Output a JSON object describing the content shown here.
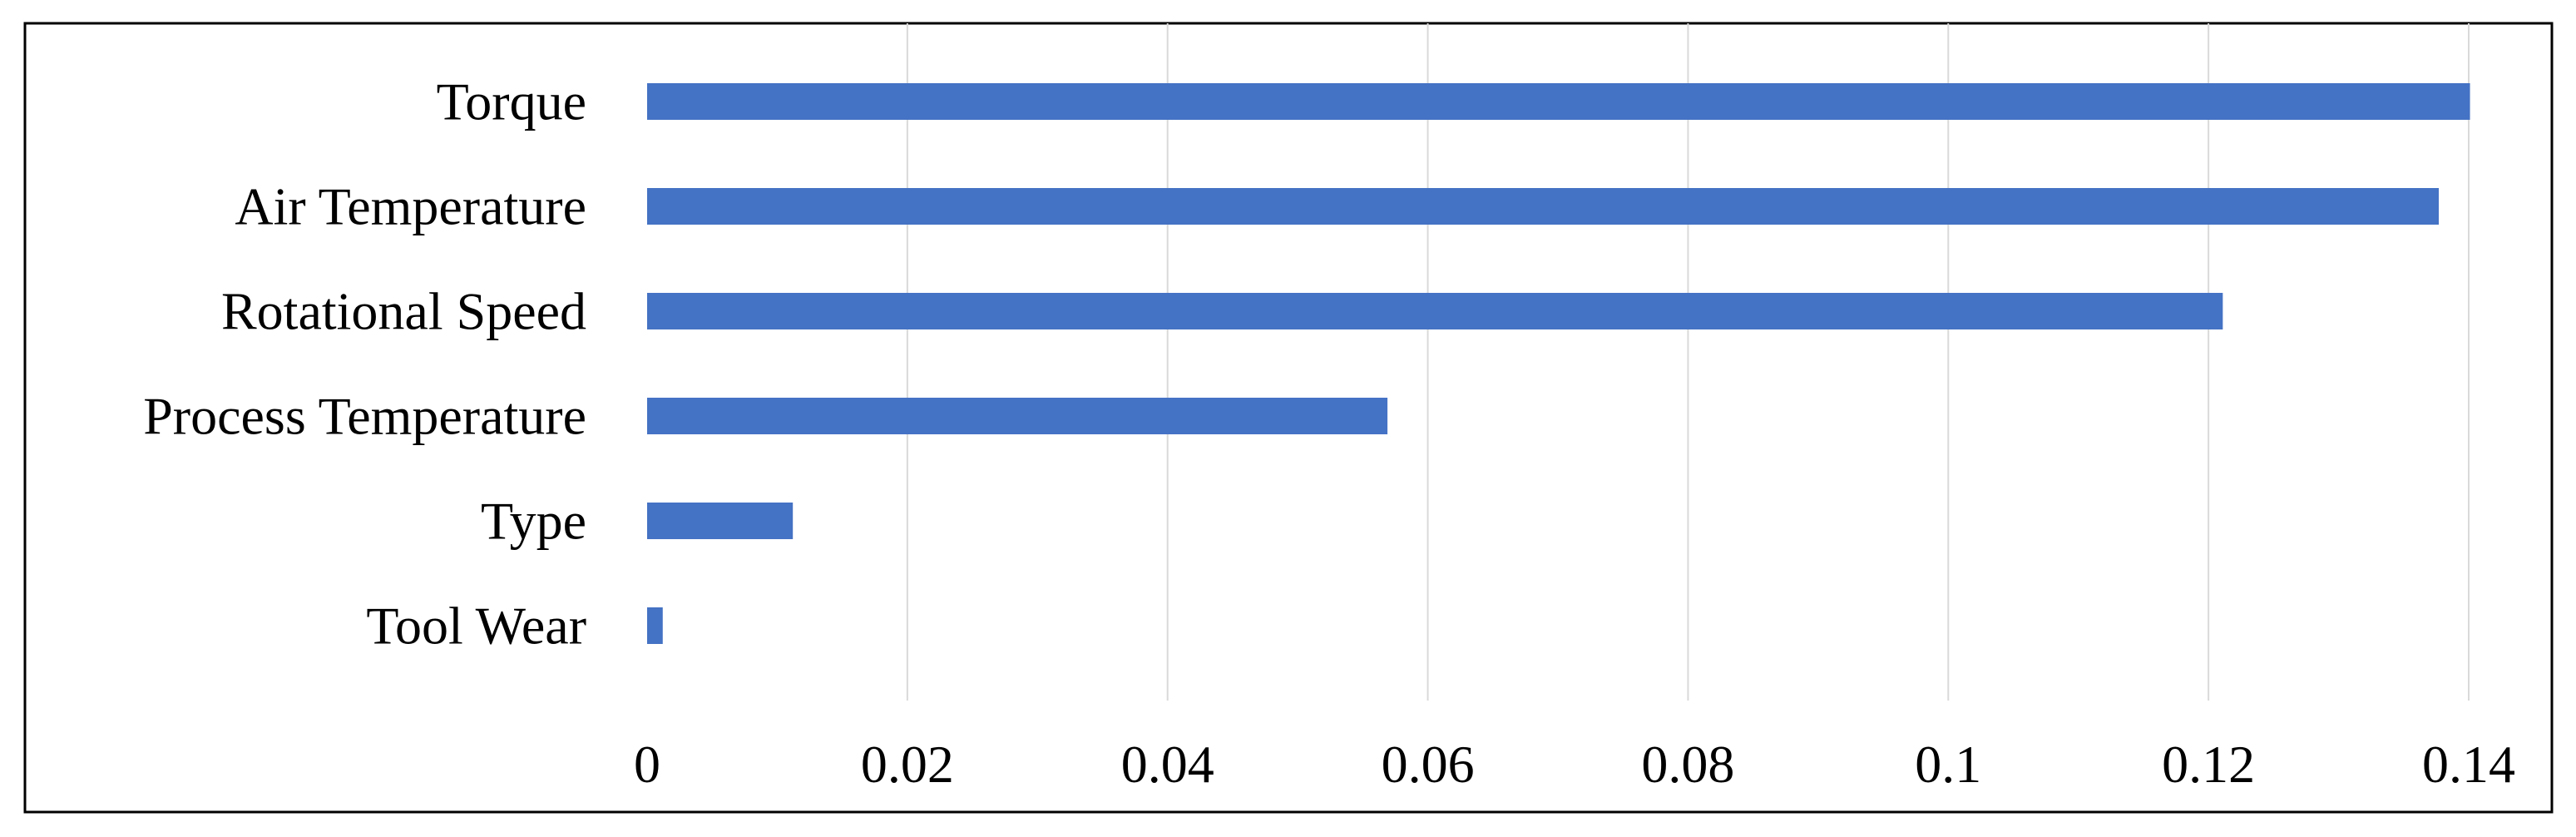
{
  "chart_data": {
    "type": "bar",
    "orientation": "horizontal",
    "title": "",
    "xlabel": "",
    "ylabel": "",
    "categories": [
      "Torque",
      "Air Temperature",
      "Rotational Speed",
      "Process Temperature",
      "Type",
      "Tool Wear"
    ],
    "values": [
      0.1401,
      0.1377,
      0.1211,
      0.0569,
      0.0112,
      0.0012
    ],
    "xlim": [
      0,
      0.14
    ],
    "x_ticks": [
      "0",
      "0.02",
      "0.04",
      "0.06",
      "0.08",
      "0.1",
      "0.12",
      "0.14"
    ],
    "x_tick_values": [
      0,
      0.02,
      0.04,
      0.06,
      0.08,
      0.1,
      0.12,
      0.14
    ],
    "grid": "vertical",
    "legend": "none",
    "colors": {
      "bar": "#4472C4",
      "grid": "#D9D9D9",
      "frame": "#000000",
      "text": "#000000"
    }
  }
}
